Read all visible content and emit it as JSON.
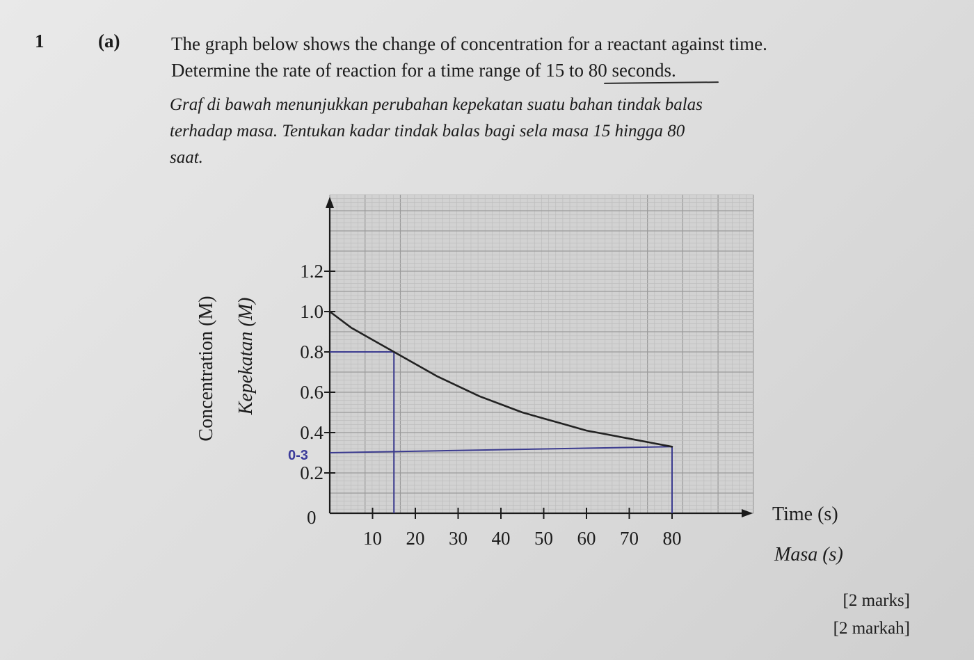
{
  "question": {
    "number": "1",
    "part": "(a)",
    "english_lines": [
      "The graph below shows the change of concentration for a reactant against time.",
      "Determine the rate of reaction for a time range of 15 to 80 seconds."
    ],
    "malay_lines": [
      "Graf di bawah menunjukkan perubahan kepekatan suatu bahan tindak balas",
      "terhadap masa. Tentukan kadar tindak balas bagi sela masa 15 hingga 80",
      "saat."
    ],
    "marks_en": "[2 marks]",
    "marks_ms": "[2 markah]"
  },
  "chart_data": {
    "type": "line",
    "xlabel": "Time (s)",
    "xlabel_ms": "Masa (s)",
    "ylabel": "Concentration (M)",
    "ylabel_ms": "Kepekatan (M)",
    "x_ticks": [
      "10",
      "20",
      "30",
      "40",
      "50",
      "60",
      "70",
      "80"
    ],
    "x_tick_values": [
      10,
      20,
      30,
      40,
      50,
      60,
      70,
      80
    ],
    "y_ticks": [
      "0.2",
      "0.4",
      "0.6",
      "0.8",
      "1.0",
      "1.2"
    ],
    "y_tick_values": [
      0.2,
      0.4,
      0.6,
      0.8,
      1.0,
      1.2
    ],
    "origin_label": "0",
    "xlim": [
      0,
      100
    ],
    "ylim": [
      0,
      1.4
    ],
    "grid": true,
    "series": [
      {
        "x": [
          0,
          5,
          10,
          15,
          20,
          25,
          30,
          35,
          40,
          45,
          50,
          55,
          60,
          65,
          70,
          75,
          80
        ],
        "y": [
          1.0,
          0.92,
          0.86,
          0.8,
          0.74,
          0.68,
          0.63,
          0.58,
          0.54,
          0.5,
          0.47,
          0.44,
          0.41,
          0.39,
          0.37,
          0.35,
          0.33
        ],
        "color": "#222222"
      }
    ],
    "annotations": {
      "handwritten_label": "0-3",
      "label_value": 0.3,
      "guide_points": [
        {
          "x": 15,
          "y": 0.8
        },
        {
          "x": 80,
          "y": 0.33
        }
      ],
      "guide_color": "#3b3b8f"
    }
  }
}
